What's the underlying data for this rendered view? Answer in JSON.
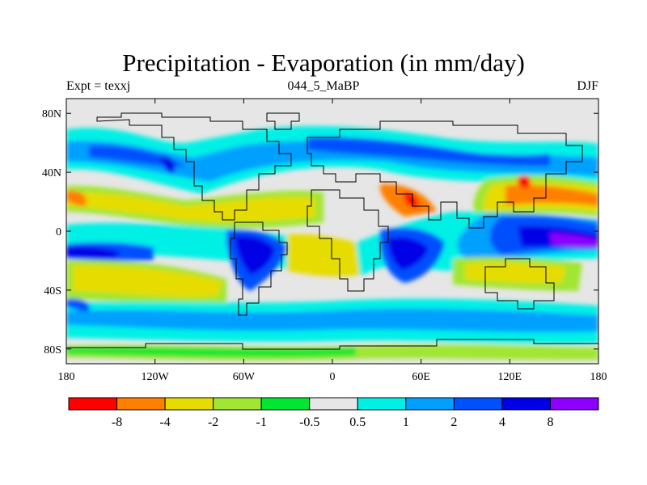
{
  "title": "Precipitation - Evaporation (in mm/day)",
  "subtitle_left": "Expt = texxj",
  "subtitle_center": "044_5_MaBP",
  "subtitle_right": "DJF",
  "map": {
    "lon_range": [
      -180,
      180
    ],
    "lat_range": [
      -90,
      90
    ],
    "x_ticks": [
      {
        "lon": -180,
        "label": "180"
      },
      {
        "lon": -120,
        "label": "120W"
      },
      {
        "lon": -60,
        "label": "60W"
      },
      {
        "lon": 0,
        "label": "0"
      },
      {
        "lon": 60,
        "label": "60E"
      },
      {
        "lon": 120,
        "label": "120E"
      },
      {
        "lon": 180,
        "label": "180"
      }
    ],
    "y_ticks": [
      {
        "lat": 80,
        "label": "80N"
      },
      {
        "lat": 40,
        "label": "40N"
      },
      {
        "lat": 0,
        "label": "0"
      },
      {
        "lat": -40,
        "label": "40S"
      },
      {
        "lat": -80,
        "label": "80S"
      }
    ]
  },
  "colorbar": {
    "colors": [
      "#ff0000",
      "#ff7f00",
      "#e6dc00",
      "#a0e632",
      "#00e632",
      "#e6e6e6",
      "#00f0e6",
      "#00a0ff",
      "#0050ff",
      "#0000e6",
      "#8c00ff"
    ],
    "labels": [
      "-8",
      "-4",
      "-2",
      "-1",
      "-0.5",
      "0.5",
      "1",
      "2",
      "4",
      "8"
    ]
  }
}
